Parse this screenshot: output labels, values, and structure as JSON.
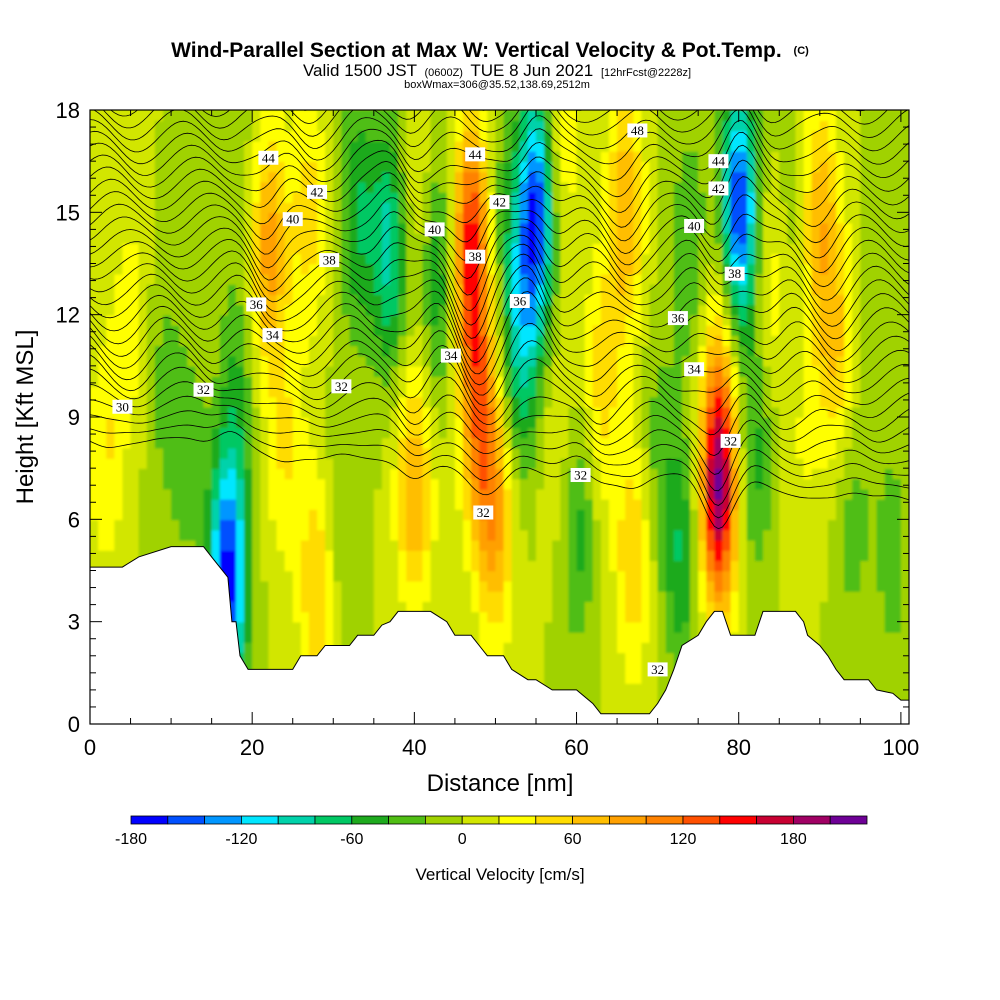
{
  "chart_data": {
    "type": "heatmap",
    "title": "Wind-Parallel Section at Max W: Vertical Velocity & Pot.Temp.",
    "title_mark": "(C)",
    "subtitle_parts": [
      "Valid 1500 JST",
      "(0600Z)",
      "TUE 8 Jun 2021",
      "[12hrFcst@2228z]"
    ],
    "subtitle2": "boxWmax=306@35.52,138.69,2512m",
    "xlabel": "Distance [nm]",
    "ylabel": "Height [Kft MSL]",
    "xlim": [
      0,
      101
    ],
    "ylim": [
      0,
      18
    ],
    "xticks": [
      0,
      20,
      40,
      60,
      80,
      100
    ],
    "yticks": [
      0,
      3,
      6,
      9,
      12,
      15,
      18
    ],
    "colorbar": {
      "label": "Vertical Velocity [cm/s]",
      "range": [
        -180,
        220
      ],
      "levels": [
        -180,
        -160,
        -140,
        -120,
        -100,
        -80,
        -60,
        -40,
        -20,
        0,
        20,
        40,
        60,
        80,
        100,
        120,
        140,
        160,
        180,
        200,
        220
      ],
      "ticks": [
        -180,
        -120,
        -60,
        0,
        60,
        120,
        180
      ],
      "tick_labels": [
        "-180",
        "-120",
        "-60",
        "0",
        "60",
        "120",
        "180"
      ],
      "colors": [
        "#0000ff",
        "#0050ff",
        "#0096ff",
        "#00e6ff",
        "#00d2aa",
        "#00c864",
        "#1eaa1e",
        "#50be14",
        "#a0d200",
        "#d2e600",
        "#ffff00",
        "#ffdc00",
        "#ffbe00",
        "#ffa000",
        "#ff8200",
        "#ff5000",
        "#ff0000",
        "#c80032",
        "#a00064",
        "#6e0096"
      ]
    },
    "terrain": [
      [
        0,
        4.6
      ],
      [
        4,
        4.6
      ],
      [
        6,
        4.9
      ],
      [
        10,
        5.2
      ],
      [
        14,
        5.2
      ],
      [
        15,
        4.9
      ],
      [
        16,
        4.6
      ],
      [
        17,
        4.3
      ],
      [
        17.5,
        3.0
      ],
      [
        18,
        3.0
      ],
      [
        18.5,
        2.0
      ],
      [
        19.5,
        1.6
      ],
      [
        25,
        1.6
      ],
      [
        26,
        2.0
      ],
      [
        28,
        2.0
      ],
      [
        29,
        2.3
      ],
      [
        32,
        2.3
      ],
      [
        33,
        2.6
      ],
      [
        35,
        2.6
      ],
      [
        36,
        2.9
      ],
      [
        37,
        3.0
      ],
      [
        38,
        3.3
      ],
      [
        42,
        3.3
      ],
      [
        44,
        3.0
      ],
      [
        45,
        2.6
      ],
      [
        47,
        2.6
      ],
      [
        48,
        2.3
      ],
      [
        49,
        2.0
      ],
      [
        51,
        2.0
      ],
      [
        52,
        1.6
      ],
      [
        54,
        1.3
      ],
      [
        55,
        1.3
      ],
      [
        57,
        1.0
      ],
      [
        60,
        1.0
      ],
      [
        62,
        0.6
      ],
      [
        63,
        0.3
      ],
      [
        69,
        0.3
      ],
      [
        70,
        0.6
      ],
      [
        71,
        1.0
      ],
      [
        72,
        1.6
      ],
      [
        73,
        2.3
      ],
      [
        75,
        2.6
      ],
      [
        76,
        3.0
      ],
      [
        77,
        3.3
      ],
      [
        78,
        3.3
      ],
      [
        79,
        2.6
      ],
      [
        82,
        2.6
      ],
      [
        83,
        3.3
      ],
      [
        87,
        3.3
      ],
      [
        88,
        3.0
      ],
      [
        88.5,
        2.6
      ],
      [
        90,
        2.3
      ],
      [
        91,
        2.0
      ],
      [
        92,
        1.6
      ],
      [
        93,
        1.3
      ],
      [
        96,
        1.3
      ],
      [
        97,
        1.0
      ],
      [
        99,
        0.9
      ],
      [
        100,
        0.7
      ],
      [
        101,
        0.7
      ]
    ],
    "w_features": [
      {
        "x": 2,
        "z": 8.0,
        "w": 40
      },
      {
        "x": 5,
        "z": 12.0,
        "w": 30
      },
      {
        "x": 9,
        "z": 10.0,
        "w": -25
      },
      {
        "x": 12,
        "z": 8.0,
        "w": -30
      },
      {
        "x": 17,
        "z": 4.2,
        "w": -170
      },
      {
        "x": 18,
        "z": 9.5,
        "w": -40
      },
      {
        "x": 19,
        "z": 16.0,
        "w": -15
      },
      {
        "x": 22,
        "z": 14.0,
        "w": 90
      },
      {
        "x": 24,
        "z": 8.0,
        "w": 40
      },
      {
        "x": 28,
        "z": 4.0,
        "w": 60
      },
      {
        "x": 27,
        "z": 15.0,
        "w": 50
      },
      {
        "x": 31,
        "z": 6.0,
        "w": -25
      },
      {
        "x": 33,
        "z": 15.0,
        "w": -60
      },
      {
        "x": 37,
        "z": 14.0,
        "w": -90
      },
      {
        "x": 40,
        "z": 7.0,
        "w": 80
      },
      {
        "x": 40,
        "z": 16.0,
        "w": 30
      },
      {
        "x": 43,
        "z": 13.0,
        "w": -60
      },
      {
        "x": 47,
        "z": 14.0,
        "w": 150
      },
      {
        "x": 48,
        "z": 9.0,
        "w": 100
      },
      {
        "x": 50,
        "z": 6.0,
        "w": 80
      },
      {
        "x": 51,
        "z": 15.0,
        "w": -30
      },
      {
        "x": 53,
        "z": 11.0,
        "w": -80
      },
      {
        "x": 55,
        "z": 15.0,
        "w": -160
      },
      {
        "x": 58,
        "z": 8.0,
        "w": 30
      },
      {
        "x": 60,
        "z": 6.0,
        "w": -55
      },
      {
        "x": 58,
        "z": 17.0,
        "w": 40
      },
      {
        "x": 63,
        "z": 10.0,
        "w": 50
      },
      {
        "x": 66,
        "z": 15.0,
        "w": 80
      },
      {
        "x": 67,
        "z": 5.0,
        "w": 60
      },
      {
        "x": 70,
        "z": 8.0,
        "w": -30
      },
      {
        "x": 73,
        "z": 5.0,
        "w": -60
      },
      {
        "x": 74,
        "z": 14.0,
        "w": -40
      },
      {
        "x": 77.5,
        "z": 7.0,
        "w": 200
      },
      {
        "x": 78,
        "z": 12.0,
        "w": 40
      },
      {
        "x": 80,
        "z": 15.0,
        "w": -170
      },
      {
        "x": 82,
        "z": 8.0,
        "w": -50
      },
      {
        "x": 84,
        "z": 13.0,
        "w": 40
      },
      {
        "x": 86,
        "z": 15.0,
        "w": -20
      },
      {
        "x": 88,
        "z": 8.0,
        "w": 20
      },
      {
        "x": 90,
        "z": 15.0,
        "w": 70
      },
      {
        "x": 92,
        "z": 11.0,
        "w": 60
      },
      {
        "x": 94,
        "z": 6.0,
        "w": -30
      },
      {
        "x": 97,
        "z": 12.0,
        "w": -15
      },
      {
        "x": 99,
        "z": 5.0,
        "w": -30
      }
    ],
    "theta_contours": {
      "base_levels": [
        [
          0,
          8.4
        ],
        [
          101,
          6.5
        ]
      ],
      "labels": [
        {
          "text": "30",
          "x": 4,
          "z": 9.3
        },
        {
          "text": "32",
          "x": 14,
          "z": 9.8
        },
        {
          "text": "32",
          "x": 31,
          "z": 9.9
        },
        {
          "text": "32",
          "x": 48.5,
          "z": 6.2
        },
        {
          "text": "32",
          "x": 60.5,
          "z": 7.3
        },
        {
          "text": "32",
          "x": 70,
          "z": 1.6
        },
        {
          "text": "32",
          "x": 79,
          "z": 8.3
        },
        {
          "text": "34",
          "x": 22.5,
          "z": 11.4
        },
        {
          "text": "34",
          "x": 44.5,
          "z": 10.8
        },
        {
          "text": "34",
          "x": 74.5,
          "z": 10.4
        },
        {
          "text": "36",
          "x": 20.5,
          "z": 12.3
        },
        {
          "text": "36",
          "x": 53,
          "z": 12.4
        },
        {
          "text": "36",
          "x": 72.5,
          "z": 11.9
        },
        {
          "text": "38",
          "x": 29.5,
          "z": 13.6
        },
        {
          "text": "38",
          "x": 47.5,
          "z": 13.7
        },
        {
          "text": "38",
          "x": 79.5,
          "z": 13.2
        },
        {
          "text": "40",
          "x": 25,
          "z": 14.8
        },
        {
          "text": "40",
          "x": 42.5,
          "z": 14.5
        },
        {
          "text": "40",
          "x": 74.5,
          "z": 14.6
        },
        {
          "text": "42",
          "x": 28,
          "z": 15.6
        },
        {
          "text": "42",
          "x": 50.5,
          "z": 15.3
        },
        {
          "text": "42",
          "x": 77.5,
          "z": 15.7
        },
        {
          "text": "44",
          "x": 22,
          "z": 16.6
        },
        {
          "text": "44",
          "x": 47.5,
          "z": 16.7
        },
        {
          "text": "44",
          "x": 77.5,
          "z": 16.5
        },
        {
          "text": "48",
          "x": 67.5,
          "z": 17.4
        }
      ]
    },
    "grid": false
  }
}
